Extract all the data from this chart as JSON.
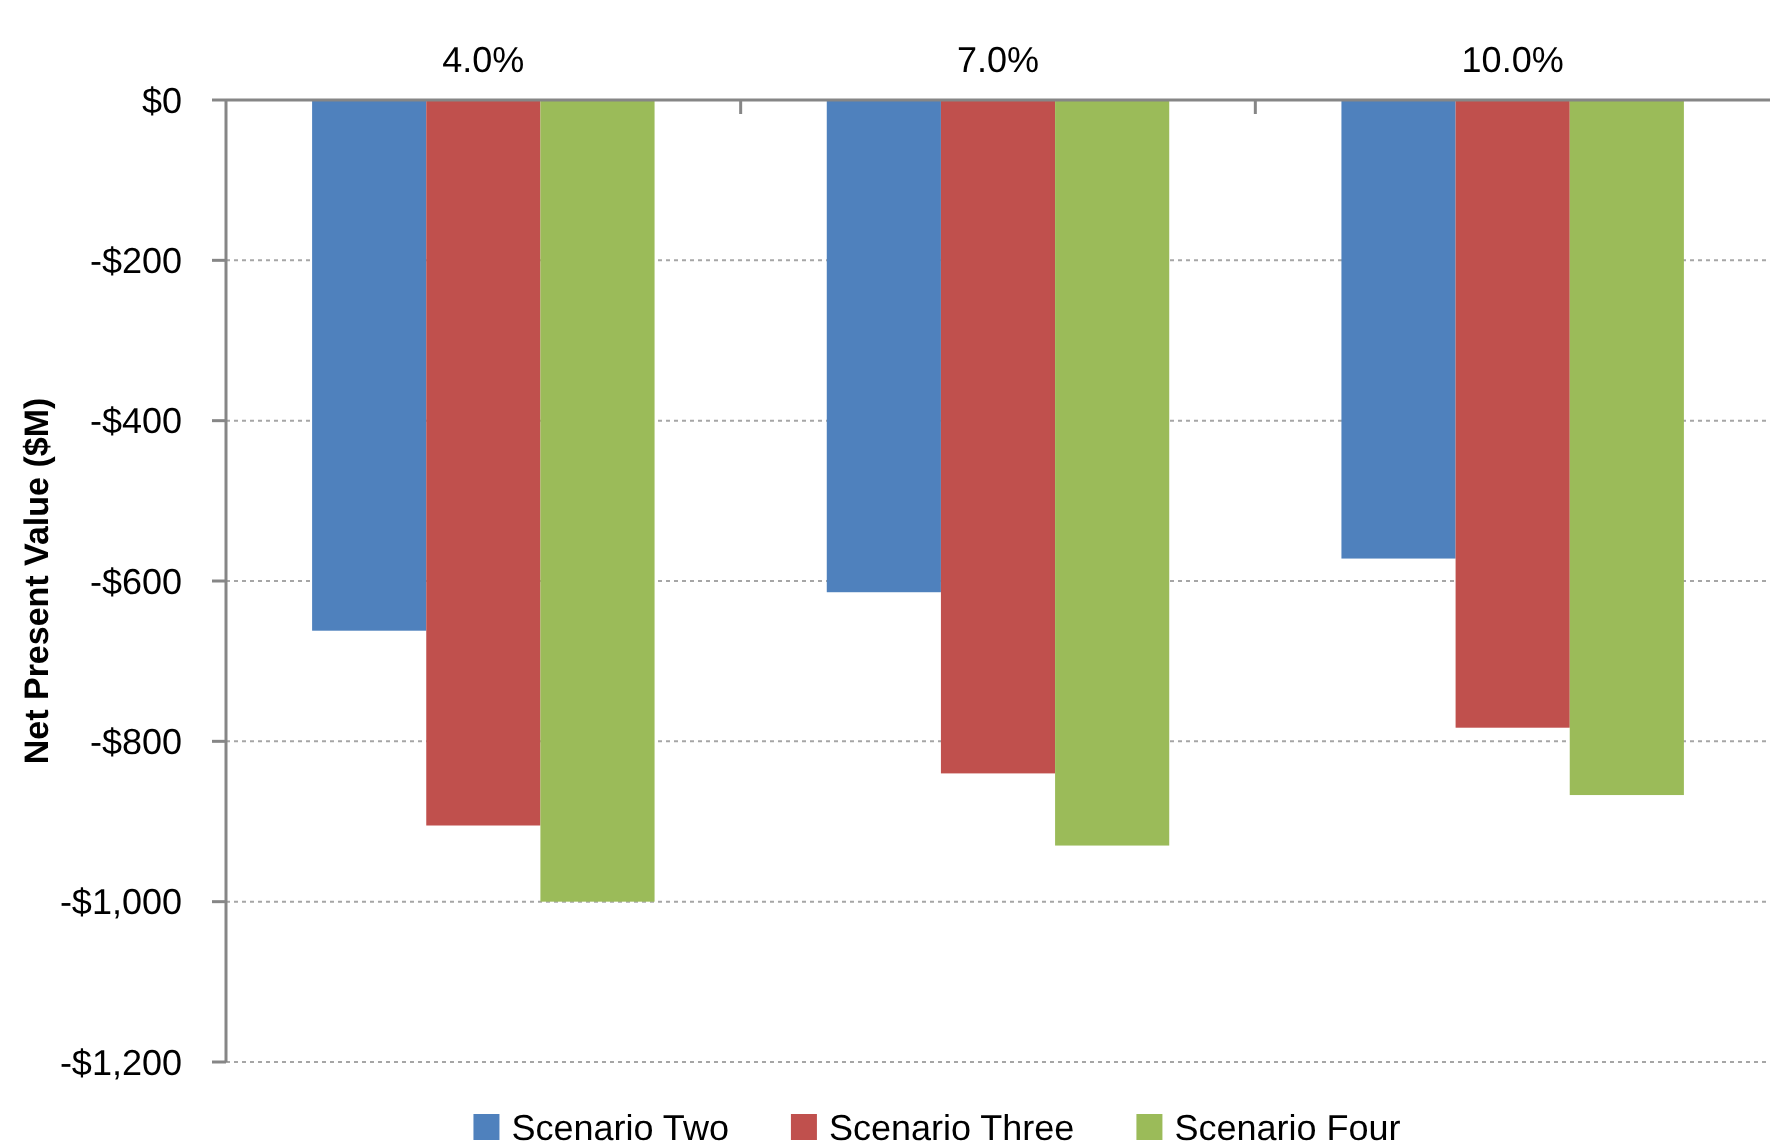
{
  "chart_data": {
    "type": "bar",
    "categories": [
      "4.0%",
      "7.0%",
      "10.0%"
    ],
    "series": [
      {
        "name": "Scenario Two",
        "color": "#4f81bd",
        "values": [
          -662,
          -614,
          -572
        ]
      },
      {
        "name": "Scenario Three",
        "color": "#c0504d",
        "values": [
          -905,
          -840,
          -783
        ]
      },
      {
        "name": "Scenario Four",
        "color": "#9bbb59",
        "values": [
          -1000,
          -930,
          -867
        ]
      }
    ],
    "ylabel": "Net Present Value ($M)",
    "ylim": [
      -1200,
      0
    ],
    "yticks": [
      {
        "value": 0,
        "label": "$0"
      },
      {
        "value": -200,
        "label": "-$200"
      },
      {
        "value": -400,
        "label": "-$400"
      },
      {
        "value": -600,
        "label": "-$600"
      },
      {
        "value": -800,
        "label": "-$800"
      },
      {
        "value": -1000,
        "label": "-$1,000"
      },
      {
        "value": -1200,
        "label": "-$1,200"
      }
    ],
    "grid": "y",
    "legend": "bottom"
  }
}
